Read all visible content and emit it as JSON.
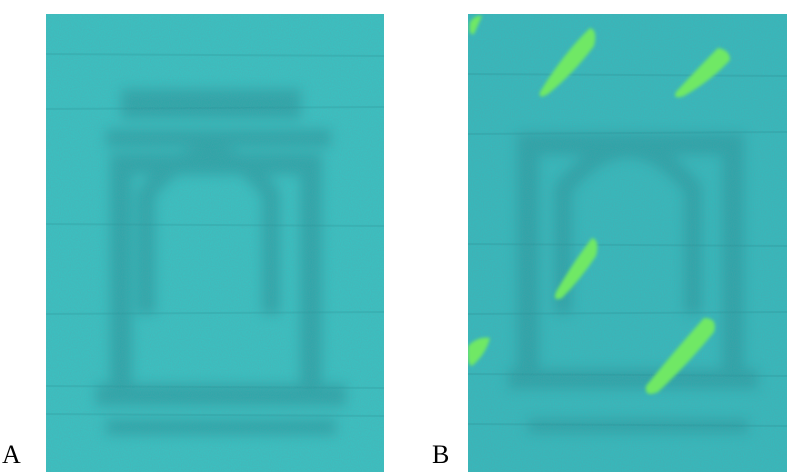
{
  "figure": {
    "panels": [
      {
        "label": "A",
        "description_color": "#33c4c2"
      },
      {
        "label": "B",
        "description_color": "#2fbdbd",
        "accent_color": "#6fe865"
      }
    ]
  },
  "colors": {
    "cyan_base": "#33c4c2",
    "cyan_dark": "#1f8d92",
    "green_streak": "#6fe865",
    "text": "#000000"
  }
}
